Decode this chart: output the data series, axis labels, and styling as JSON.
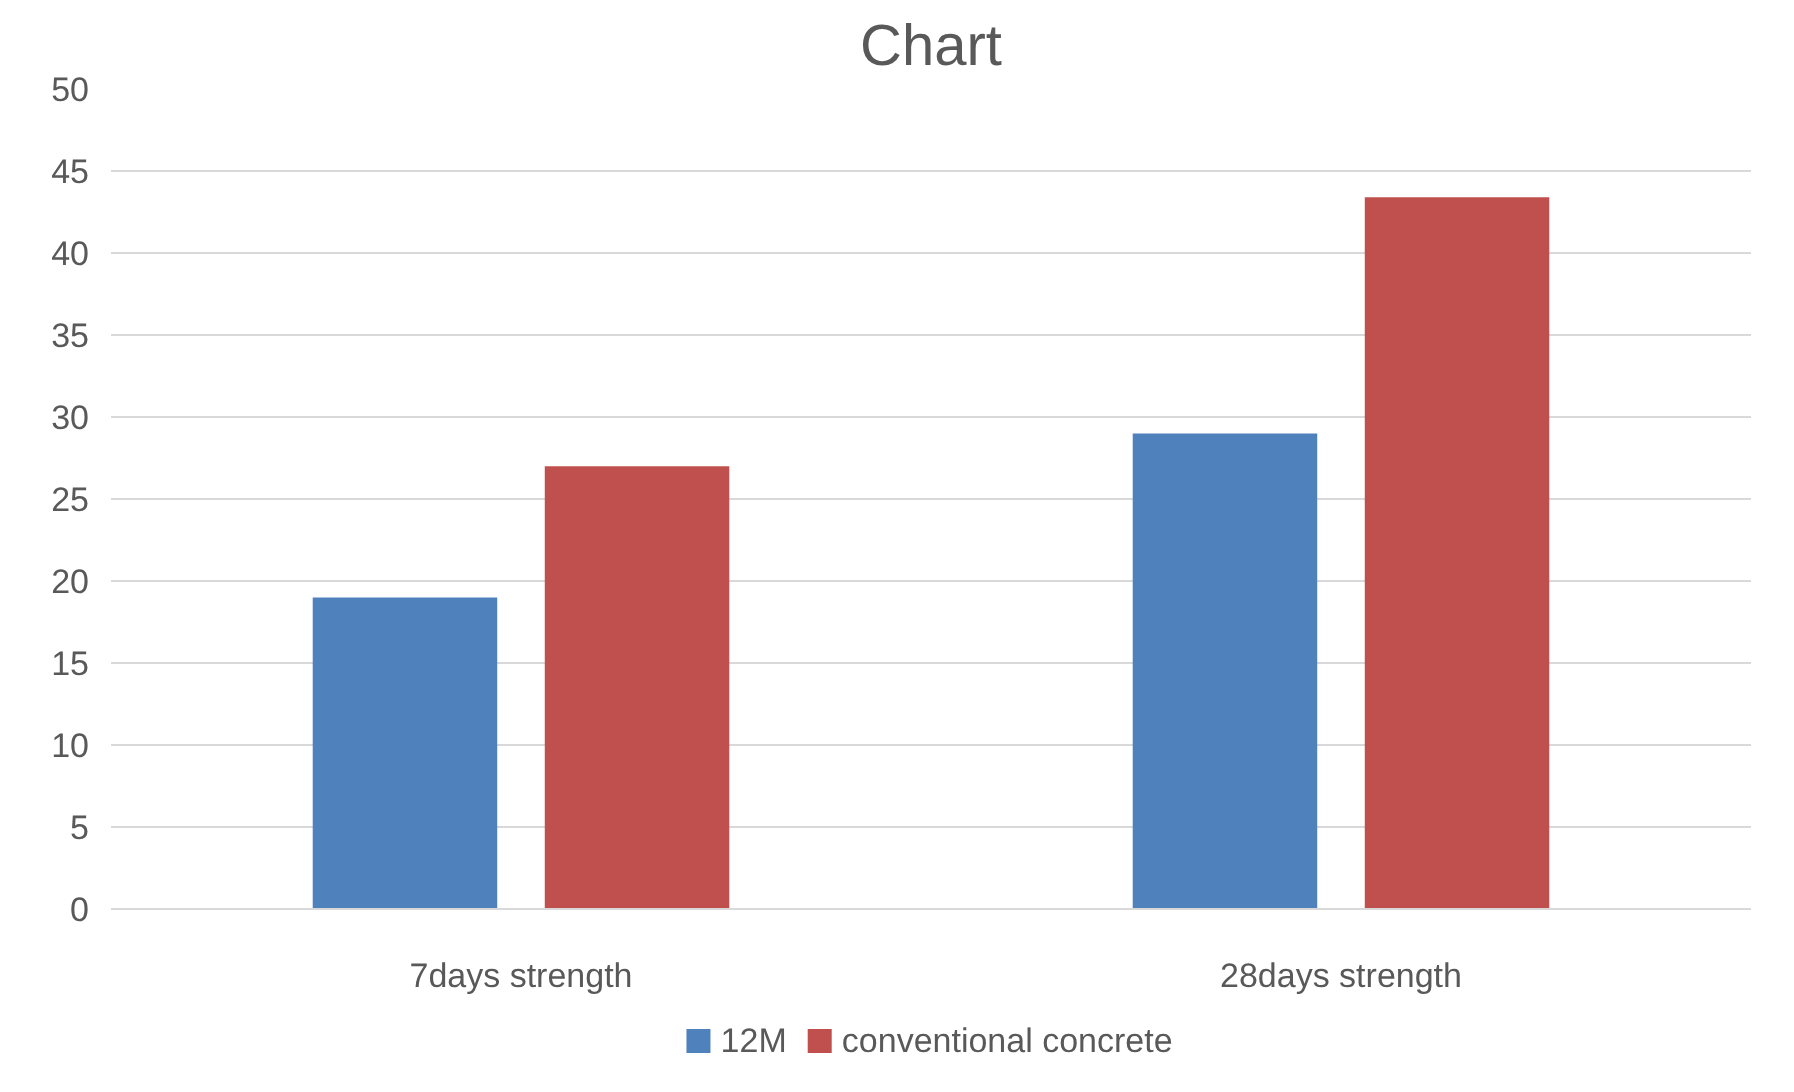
{
  "chart_data": {
    "type": "bar",
    "title": "Chart",
    "categories": [
      "7days strength",
      "28days strength"
    ],
    "series": [
      {
        "name": "12M",
        "color": "#4f81bd",
        "values": [
          19,
          29
        ]
      },
      {
        "name": "conventional concrete",
        "color": "#c0504d",
        "values": [
          27,
          43.4
        ]
      }
    ],
    "ylim": [
      0,
      50
    ],
    "yticks": [
      0,
      5,
      10,
      15,
      20,
      25,
      30,
      35,
      40,
      45,
      50
    ],
    "grid": "y",
    "legend": "bottom"
  }
}
